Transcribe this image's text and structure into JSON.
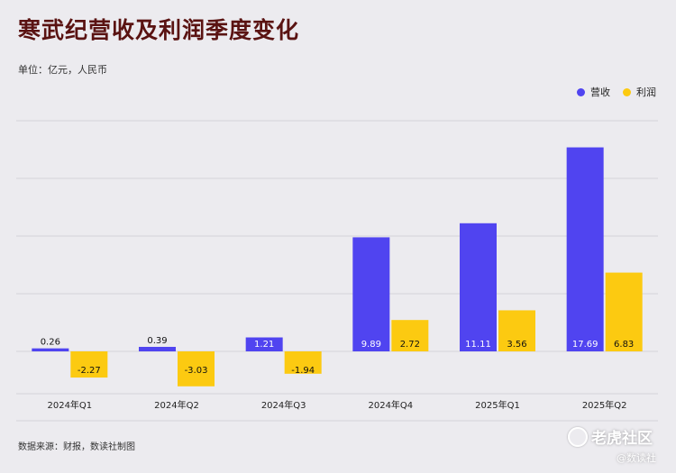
{
  "title": "寒武纪营收及利润季度变化",
  "unit_label": "单位：亿元，人民币",
  "source_label": "数据来源：财报，数读社制图",
  "watermark": {
    "main": "老虎社区",
    "sub": "@数读社"
  },
  "colors": {
    "revenue": "#5044f0",
    "profit": "#fcca11",
    "title": "#5a1312",
    "grid": "#d4d3d8"
  },
  "chart_data": {
    "type": "bar",
    "categories": [
      "2024年Q1",
      "2024年Q2",
      "2024年Q3",
      "2024年Q4",
      "2025年Q1",
      "2025年Q2"
    ],
    "series": [
      {
        "name": "营收",
        "values": [
          0.26,
          0.39,
          1.21,
          9.89,
          11.11,
          17.69
        ]
      },
      {
        "name": "利润",
        "values": [
          -2.27,
          -3.03,
          -1.94,
          2.72,
          3.56,
          6.83
        ]
      }
    ],
    "value_labels": [
      [
        "0.26",
        "0.39",
        "1.21",
        "9.89",
        "11.11",
        "17.69"
      ],
      [
        "-2.27",
        "-3.03",
        "-1.94",
        "2.72",
        "3.56",
        "6.83"
      ]
    ],
    "ylim": [
      -4,
      20
    ],
    "grid": true,
    "legend_position": "top-right"
  }
}
